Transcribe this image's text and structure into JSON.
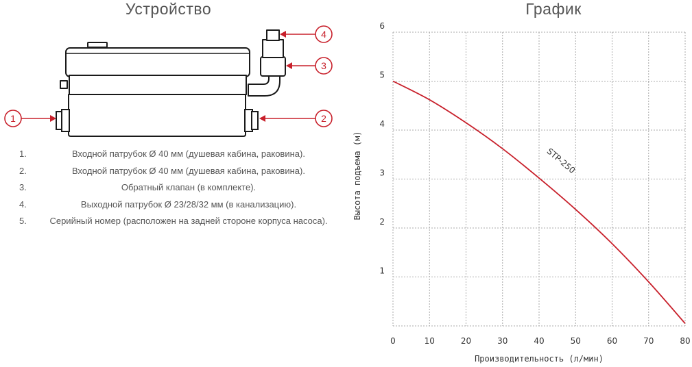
{
  "left": {
    "title": "Устройство",
    "callouts": [
      "1",
      "2",
      "3",
      "4"
    ],
    "notes": [
      {
        "num": "1.",
        "text": "Входной патрубок Ø 40 мм (душевая кабина, раковина)."
      },
      {
        "num": "2.",
        "text": "Входной патрубок Ø 40 мм (душевая кабина, раковина)."
      },
      {
        "num": "3.",
        "text": "Обратный клапан (в комплекте)."
      },
      {
        "num": "4.",
        "text": "Выходной патрубок Ø 23/28/32 мм (в канализацию)."
      },
      {
        "num": "5.",
        "text": "Серийный номер (расположен на задней стороне корпуса насоса)."
      }
    ],
    "accent": "#c8202b"
  },
  "right": {
    "title": "График",
    "chart_data": {
      "type": "line",
      "xlabel": "Производительность (л/мин)",
      "ylabel": "Высота подъема (м)",
      "xlim": [
        0,
        80
      ],
      "ylim": [
        0,
        6
      ],
      "xticks": [
        0,
        10,
        20,
        30,
        40,
        50,
        60,
        70,
        80
      ],
      "yticks": [
        1,
        2,
        3,
        4,
        5,
        6
      ],
      "grid": true,
      "series": [
        {
          "name": "STP-250",
          "color": "#c8202b",
          "x": [
            0,
            10,
            20,
            30,
            40,
            50,
            60,
            70,
            80
          ],
          "y": [
            5.0,
            4.62,
            4.15,
            3.62,
            3.02,
            2.38,
            1.68,
            0.9,
            0.05
          ]
        }
      ]
    }
  }
}
